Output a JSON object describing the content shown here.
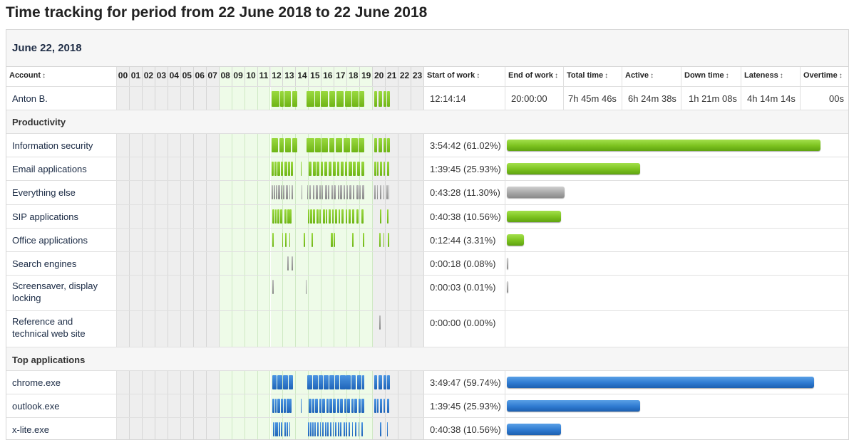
{
  "title": "Time tracking for period from 22 June 2018 to 22 June 2018",
  "date_label": "June 22, 2018",
  "columns": {
    "account": "Account",
    "hours": [
      "00",
      "01",
      "02",
      "03",
      "04",
      "05",
      "06",
      "07",
      "08",
      "09",
      "10",
      "11",
      "12",
      "13",
      "14",
      "15",
      "16",
      "17",
      "18",
      "19",
      "20",
      "21",
      "22",
      "23"
    ],
    "start": "Start of work",
    "end": "End of work",
    "total": "Total time",
    "active": "Active",
    "down": "Down time",
    "lateness": "Lateness",
    "overtime": "Overtime",
    "sort_icon": "↕"
  },
  "employee": {
    "name": "Anton B.",
    "start": "12:14:14",
    "end": "20:00:00",
    "total": "7h 45m 46s",
    "active": "6h 24m 38s",
    "down": "1h 21m 08s",
    "lateness": "4h 14m 14s",
    "overtime": "00s"
  },
  "sections": {
    "productivity": "Productivity",
    "top_apps": "Top applications"
  },
  "productivity": [
    {
      "name": "Information security",
      "value": "3:54:42 (61.02%)",
      "share": 0.6102,
      "color": "green"
    },
    {
      "name": "Email applications",
      "value": "1:39:45 (25.93%)",
      "share": 0.2593,
      "color": "green"
    },
    {
      "name": "Everything else",
      "value": "0:43:28 (11.30%)",
      "share": 0.113,
      "color": "gray"
    },
    {
      "name": "SIP applications",
      "value": "0:40:38 (10.56%)",
      "share": 0.1056,
      "color": "green"
    },
    {
      "name": "Office applications",
      "value": "0:12:44 (3.31%)",
      "share": 0.0331,
      "color": "green"
    },
    {
      "name": "Search engines",
      "value": "0:00:18 (0.08%)",
      "share": 0.0008,
      "color": "gray"
    },
    {
      "name": "Screensaver, display locking",
      "value": "0:00:03 (0.01%)",
      "share": 0.0001,
      "color": "gray"
    },
    {
      "name": "Reference and technical web site",
      "value": "0:00:00 (0.00%)",
      "share": 0,
      "color": "gray"
    }
  ],
  "top_apps": [
    {
      "name": "chrome.exe",
      "value": "3:49:47 (59.74%)",
      "share": 0.5974,
      "color": "blue"
    },
    {
      "name": "outlook.exe",
      "value": "1:39:45 (25.93%)",
      "share": 0.2593,
      "color": "blue"
    },
    {
      "name": "x-lite.exe",
      "value": "0:40:38 (10.56%)",
      "share": 0.1056,
      "color": "blue"
    }
  ],
  "colors": {
    "work_hours_bg": "#eefbe8",
    "off_hours_bg": "#eeeeee",
    "green": "#7cc21f",
    "gray": "#a7a7a7",
    "blue": "#2f7bd1"
  }
}
